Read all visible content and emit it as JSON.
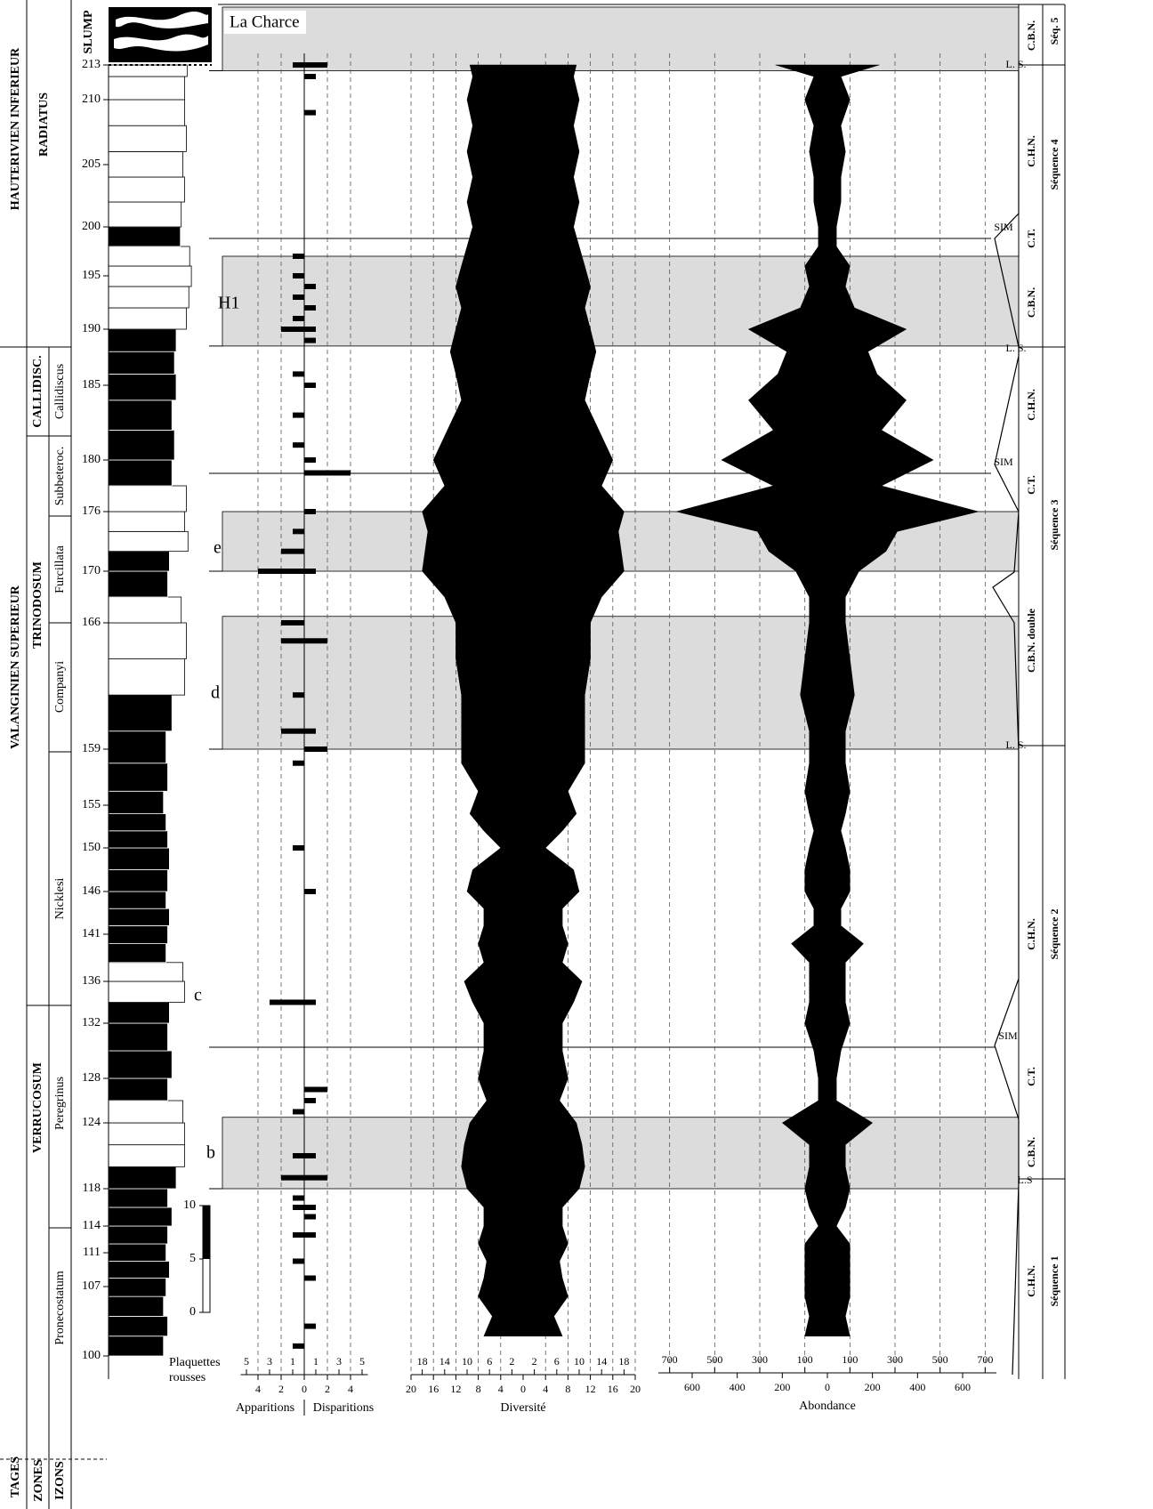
{
  "header": {
    "section": "La Charce",
    "slump": "SLUMP"
  },
  "columns": {
    "stage_header": "TAGES",
    "zone_header": "ZONES",
    "horizon_header": "IZONS"
  },
  "stages": [
    "HAUTERIVIEN INFERIEUR",
    "VALANGINIEN SUPERIEUR"
  ],
  "zones": [
    "RADIATUS",
    "CALLIDISC.",
    "TRINODOSUM",
    "VERRUCOSUM"
  ],
  "horizons": [
    "Callidiscus",
    "Subbeteroc.",
    "Furcillata",
    "Companyi",
    "Nicklesi",
    "Peregrinus",
    "Pronecostatum"
  ],
  "beds": {
    "ticks": [
      100,
      107,
      111,
      114,
      118,
      124,
      128,
      132,
      136,
      141,
      146,
      150,
      155,
      159,
      166,
      170,
      176,
      180,
      185,
      190,
      195,
      200,
      205,
      210,
      213
    ]
  },
  "events": [
    "H1",
    "e",
    "d",
    "c",
    "b"
  ],
  "sequences": {
    "systems": [
      "C.B.N.",
      "C.H.N.",
      "C.T.",
      "C.B.N.",
      "C.H.N.",
      "C.T.",
      "C.B.N. double",
      "C.H.N.",
      "C.T.",
      "C.B.N.",
      "C.H.N."
    ],
    "surfaces": [
      "L. S.",
      "SIM",
      "L. S.",
      "SIM",
      "L. S.",
      "SIM",
      "L.S"
    ],
    "names": [
      "Séq. 5",
      "Séquence 4",
      "Séquence 3",
      "Séquence 2",
      "Séquence 1"
    ]
  },
  "shading": {
    "intervals": [
      [
        212.5,
        218
      ],
      [
        188.5,
        197
      ],
      [
        170,
        176
      ],
      [
        159,
        166.5
      ],
      [
        118,
        124.5
      ]
    ]
  },
  "chart_data": [
    {
      "type": "column",
      "levels": [
        100,
        102,
        104,
        106,
        108,
        110,
        112,
        114,
        116,
        118,
        120,
        122,
        124,
        126,
        128,
        130,
        132,
        134,
        136,
        138,
        140,
        142,
        144,
        146,
        148,
        150,
        152,
        154,
        156,
        158,
        160,
        162,
        164,
        166,
        168,
        170,
        172,
        174,
        176,
        178,
        180,
        182,
        184,
        186,
        188,
        190,
        192,
        194,
        196,
        198,
        200,
        202,
        204,
        206,
        208,
        210,
        212
      ],
      "values": [
        6.5,
        7,
        6.5,
        6.8,
        7.2,
        6.8,
        7,
        7.5,
        7,
        8,
        9,
        9,
        8.8,
        7,
        7.5,
        7,
        7.2,
        9,
        8.8,
        6.8,
        7,
        7.2,
        6.8,
        7,
        7.2,
        7,
        6.8,
        6.5,
        7,
        6.8,
        7.5,
        9,
        9.2,
        8.6,
        7,
        7.2,
        9.4,
        9,
        9.2,
        7.5,
        7.8,
        7.5,
        8,
        7.8,
        8,
        9.2,
        9.5,
        9.8,
        9.6,
        8.5,
        8.6,
        9,
        8.8,
        9.2,
        9,
        9,
        9.3
      ],
      "color": "#000000",
      "scale": {
        "label": [
          "Plaquettes",
          "rousses"
        ],
        "ylim": [
          0,
          10
        ],
        "yticks": [
          0,
          5,
          10
        ]
      }
    },
    {
      "type": "bar",
      "color": "#000000",
      "xlim": [
        -5.5,
        5.5
      ],
      "xticks": [
        {
          "value": -4,
          "label": "4"
        },
        {
          "value": -2,
          "label": "2"
        },
        0,
        2,
        4
      ],
      "xticks_upper": [
        {
          "value": -5,
          "label": "5"
        },
        {
          "value": -3,
          "label": "3"
        },
        {
          "value": -1,
          "label": "1"
        },
        1,
        3,
        5
      ],
      "grid": "xticks",
      "series": [
        {
          "name": "Apparitions",
          "levels": [
            213,
            197,
            195,
            193,
            191,
            190,
            186,
            183,
            181,
            174,
            172,
            170,
            166,
            165,
            162,
            160,
            158,
            150,
            134,
            125,
            121,
            119,
            117,
            116,
            113,
            110,
            101
          ],
          "values": [
            1,
            1,
            1,
            1,
            1,
            2,
            1,
            1,
            1,
            1,
            2,
            4,
            2,
            2,
            1,
            2,
            1,
            1,
            3,
            1,
            1,
            2,
            1,
            1,
            1,
            1,
            1
          ]
        },
        {
          "name": "Disparitions",
          "levels": [
            213,
            212,
            209,
            194,
            192,
            190,
            189,
            185,
            180,
            179,
            176,
            170,
            165,
            160,
            159,
            146,
            134,
            127,
            126,
            121,
            119,
            116,
            115,
            113,
            108,
            103
          ],
          "values": [
            2,
            1,
            1,
            1,
            1,
            1,
            1,
            1,
            1,
            4,
            1,
            1,
            2,
            1,
            2,
            1,
            1,
            2,
            1,
            1,
            2,
            1,
            1,
            1,
            1,
            1
          ]
        }
      ]
    },
    {
      "type": "spindle",
      "xlabel": "Diversité",
      "color": "#000000",
      "xlim": [
        -20,
        20
      ],
      "xticks": [
        {
          "value": -20,
          "label": "20"
        },
        {
          "value": -16,
          "label": "16"
        },
        {
          "value": -12,
          "label": "12"
        },
        {
          "value": -8,
          "label": "8"
        },
        {
          "value": -4,
          "label": "4"
        },
        0,
        4,
        8,
        12,
        16,
        20
      ],
      "xticks_upper": [
        {
          "value": -18,
          "label": "18"
        },
        {
          "value": -14,
          "label": "14"
        },
        {
          "value": -10,
          "label": "10"
        },
        {
          "value": -6,
          "label": "6"
        },
        {
          "value": -2,
          "label": "2"
        },
        2,
        6,
        10,
        14,
        18
      ],
      "grid": "xticks",
      "levels": [
        102,
        104,
        106,
        108,
        110,
        112,
        114,
        116,
        118,
        120,
        122,
        124,
        126,
        128,
        130,
        132,
        134,
        136,
        138,
        140,
        142,
        144,
        146,
        148,
        150,
        152,
        154,
        156,
        158,
        160,
        162,
        164,
        166,
        168,
        170,
        172,
        174,
        176,
        178,
        180,
        182,
        184,
        186,
        188,
        190,
        192,
        194,
        196,
        198,
        200,
        202,
        204,
        206,
        208,
        210,
        212,
        213
      ],
      "values": [
        7,
        5.5,
        8,
        7,
        6.5,
        8,
        7,
        7,
        10,
        11,
        10.5,
        9.5,
        6.5,
        8,
        7,
        7,
        9,
        10.5,
        7,
        8,
        7,
        7,
        10,
        9,
        4,
        7,
        9.5,
        8,
        11,
        11,
        11,
        12,
        12,
        14,
        18,
        17.5,
        17,
        18,
        14,
        16,
        13.5,
        11,
        12,
        13,
        12,
        11,
        12,
        11,
        10,
        9,
        10,
        9,
        10,
        9,
        10,
        9,
        9.5
      ]
    },
    {
      "type": "spindle",
      "xlabel": "Abondance",
      "color": "#000000",
      "xlim": [
        -750,
        750
      ],
      "xticks": [
        {
          "value": -600,
          "label": "600"
        },
        {
          "value": -400,
          "label": "400"
        },
        {
          "value": -200,
          "label": "200"
        },
        0,
        200,
        400,
        600
      ],
      "xticks_upper": [
        {
          "value": -700,
          "label": "700"
        },
        {
          "value": -500,
          "label": "500"
        },
        {
          "value": -300,
          "label": "300"
        },
        {
          "value": -100,
          "label": "100"
        },
        100,
        300,
        500,
        700
      ],
      "grid": "xticks_upper",
      "levels": [
        102,
        104,
        106,
        108,
        110,
        112,
        114,
        116,
        118,
        120,
        122,
        124,
        126,
        128,
        130,
        132,
        134,
        136,
        138,
        140,
        142,
        144,
        146,
        148,
        150,
        152,
        154,
        156,
        158,
        160,
        162,
        164,
        166,
        168,
        170,
        172,
        174,
        176,
        178,
        180,
        182,
        184,
        186,
        188,
        190,
        192,
        194,
        196,
        198,
        200,
        202,
        204,
        206,
        208,
        210,
        212,
        213
      ],
      "values": [
        100,
        80,
        100,
        100,
        100,
        100,
        40,
        80,
        100,
        80,
        80,
        200,
        40,
        40,
        60,
        100,
        80,
        80,
        80,
        160,
        60,
        60,
        100,
        100,
        80,
        60,
        80,
        100,
        80,
        80,
        120,
        100,
        80,
        80,
        140,
        260,
        310,
        670,
        240,
        470,
        240,
        350,
        220,
        180,
        350,
        120,
        80,
        100,
        40,
        40,
        60,
        60,
        80,
        60,
        100,
        60,
        230
      ]
    }
  ]
}
